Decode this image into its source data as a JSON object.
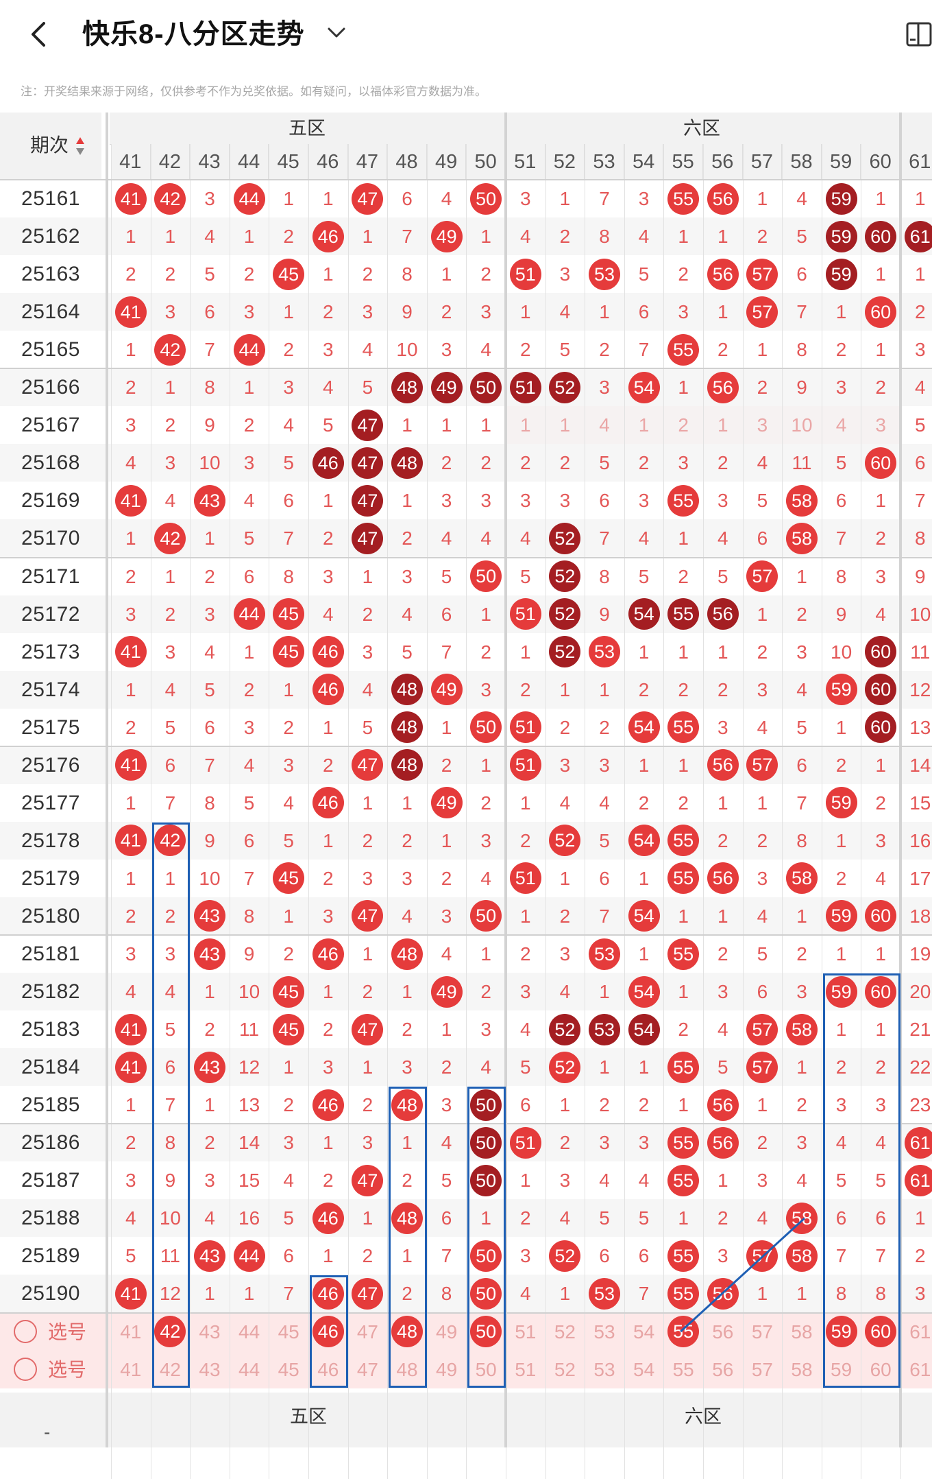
{
  "header": {
    "back_icon": "chevron-left-icon",
    "title": "快乐8-八分区走势",
    "title_dropdown_icon": "chevron-down-icon",
    "right_icon": "sidebar-panel-icon"
  },
  "note": "注：开奖结果来源于网络，仅供参考不作为兑奖依据。如有疑问，以福体彩官方数据为准。",
  "table": {
    "period_header": "期次",
    "sort_icon": "sort-icon",
    "zones": [
      {
        "label": "五区",
        "columns": [
          "41",
          "42",
          "43",
          "44",
          "45",
          "46",
          "47",
          "48",
          "49",
          "50"
        ]
      },
      {
        "label": "六区",
        "columns": [
          "51",
          "52",
          "53",
          "54",
          "55",
          "56",
          "57",
          "58",
          "59",
          "60"
        ]
      },
      {
        "label": "",
        "columns": [
          "61"
        ]
      }
    ],
    "columns": [
      "41",
      "42",
      "43",
      "44",
      "45",
      "46",
      "47",
      "48",
      "49",
      "50",
      "51",
      "52",
      "53",
      "54",
      "55",
      "56",
      "57",
      "58",
      "59",
      "60",
      "61"
    ],
    "rows": [
      {
        "period": "25161",
        "cells": [
          "41",
          "42",
          "3",
          "44",
          "1",
          "1",
          "47",
          "6",
          "4",
          "50",
          "3",
          "1",
          "7",
          "3",
          "55",
          "56",
          "1",
          "4",
          "59",
          "1",
          "1"
        ],
        "dark": [
          "59"
        ]
      },
      {
        "period": "25162",
        "cells": [
          "1",
          "1",
          "4",
          "1",
          "2",
          "46",
          "1",
          "7",
          "49",
          "1",
          "4",
          "2",
          "8",
          "4",
          "1",
          "1",
          "2",
          "5",
          "59",
          "60",
          "61"
        ],
        "dark": [
          "59",
          "60",
          "61"
        ]
      },
      {
        "period": "25163",
        "cells": [
          "2",
          "2",
          "5",
          "2",
          "45",
          "1",
          "2",
          "8",
          "1",
          "2",
          "51",
          "3",
          "53",
          "5",
          "2",
          "56",
          "57",
          "6",
          "59",
          "1",
          "1"
        ],
        "dark": [
          "59"
        ]
      },
      {
        "period": "25164",
        "cells": [
          "41",
          "3",
          "6",
          "3",
          "1",
          "2",
          "3",
          "9",
          "2",
          "3",
          "1",
          "4",
          "1",
          "6",
          "3",
          "1",
          "57",
          "7",
          "1",
          "60",
          "2"
        ],
        "dark": []
      },
      {
        "period": "25165",
        "cells": [
          "1",
          "42",
          "7",
          "44",
          "2",
          "3",
          "4",
          "10",
          "3",
          "4",
          "2",
          "5",
          "2",
          "7",
          "55",
          "2",
          "1",
          "8",
          "2",
          "1",
          "3"
        ],
        "dark": []
      },
      {
        "period": "25166",
        "cells": [
          "2",
          "1",
          "8",
          "1",
          "3",
          "4",
          "5",
          "48",
          "49",
          "50",
          "51",
          "52",
          "3",
          "54",
          "1",
          "56",
          "2",
          "9",
          "3",
          "2",
          "4"
        ],
        "dark": [
          "48",
          "49",
          "50",
          "51",
          "52"
        ]
      },
      {
        "period": "25167",
        "cells": [
          "3",
          "2",
          "9",
          "2",
          "4",
          "5",
          "47",
          "1",
          "1",
          "1",
          "1",
          "1",
          "4",
          "1",
          "2",
          "1",
          "3",
          "10",
          "4",
          "3",
          "5"
        ],
        "dark": [
          "47"
        ]
      },
      {
        "period": "25168",
        "cells": [
          "4",
          "3",
          "10",
          "3",
          "5",
          "46",
          "47",
          "48",
          "2",
          "2",
          "2",
          "2",
          "5",
          "2",
          "3",
          "2",
          "4",
          "11",
          "5",
          "60",
          "6"
        ],
        "dark": [
          "46",
          "47",
          "48"
        ]
      },
      {
        "period": "25169",
        "cells": [
          "41",
          "4",
          "43",
          "4",
          "6",
          "1",
          "47",
          "1",
          "3",
          "3",
          "3",
          "3",
          "6",
          "3",
          "55",
          "3",
          "5",
          "58",
          "6",
          "1",
          "7"
        ],
        "dark": [
          "47"
        ]
      },
      {
        "period": "25170",
        "cells": [
          "1",
          "42",
          "1",
          "5",
          "7",
          "2",
          "47",
          "2",
          "4",
          "4",
          "4",
          "52",
          "7",
          "4",
          "1",
          "4",
          "6",
          "58",
          "7",
          "2",
          "8"
        ],
        "dark": [
          "47",
          "52"
        ]
      },
      {
        "period": "25171",
        "cells": [
          "2",
          "1",
          "2",
          "6",
          "8",
          "3",
          "1",
          "3",
          "5",
          "50",
          "5",
          "52",
          "8",
          "5",
          "2",
          "5",
          "57",
          "1",
          "8",
          "3",
          "9"
        ],
        "dark": [
          "52"
        ]
      },
      {
        "period": "25172",
        "cells": [
          "3",
          "2",
          "3",
          "44",
          "45",
          "4",
          "2",
          "4",
          "6",
          "1",
          "51",
          "52",
          "9",
          "54",
          "55",
          "56",
          "1",
          "2",
          "9",
          "4",
          "10"
        ],
        "dark": [
          "52",
          "54",
          "55",
          "56"
        ]
      },
      {
        "period": "25173",
        "cells": [
          "41",
          "3",
          "4",
          "1",
          "45",
          "46",
          "3",
          "5",
          "7",
          "2",
          "1",
          "52",
          "53",
          "1",
          "1",
          "1",
          "2",
          "3",
          "10",
          "60",
          "11"
        ],
        "dark": [
          "52",
          "60"
        ]
      },
      {
        "period": "25174",
        "cells": [
          "1",
          "4",
          "5",
          "2",
          "1",
          "46",
          "4",
          "48",
          "49",
          "3",
          "2",
          "1",
          "1",
          "2",
          "2",
          "2",
          "3",
          "4",
          "59",
          "60",
          "12"
        ],
        "dark": [
          "48",
          "60"
        ]
      },
      {
        "period": "25175",
        "cells": [
          "2",
          "5",
          "6",
          "3",
          "2",
          "1",
          "5",
          "48",
          "1",
          "50",
          "51",
          "2",
          "2",
          "54",
          "55",
          "3",
          "4",
          "5",
          "1",
          "60",
          "13"
        ],
        "dark": [
          "48",
          "60"
        ]
      },
      {
        "period": "25176",
        "cells": [
          "41",
          "6",
          "7",
          "4",
          "3",
          "2",
          "47",
          "48",
          "2",
          "1",
          "51",
          "3",
          "3",
          "1",
          "1",
          "56",
          "57",
          "6",
          "2",
          "1",
          "14"
        ],
        "dark": [
          "48"
        ]
      },
      {
        "period": "25177",
        "cells": [
          "1",
          "7",
          "8",
          "5",
          "4",
          "46",
          "1",
          "1",
          "49",
          "2",
          "1",
          "4",
          "4",
          "2",
          "2",
          "1",
          "1",
          "7",
          "59",
          "2",
          "15"
        ],
        "dark": []
      },
      {
        "period": "25178",
        "cells": [
          "41",
          "42",
          "9",
          "6",
          "5",
          "1",
          "2",
          "2",
          "1",
          "3",
          "2",
          "52",
          "5",
          "54",
          "55",
          "2",
          "2",
          "8",
          "1",
          "3",
          "16"
        ],
        "dark": []
      },
      {
        "period": "25179",
        "cells": [
          "1",
          "1",
          "10",
          "7",
          "45",
          "2",
          "3",
          "3",
          "2",
          "4",
          "51",
          "1",
          "6",
          "1",
          "55",
          "56",
          "3",
          "58",
          "2",
          "4",
          "17"
        ],
        "dark": []
      },
      {
        "period": "25180",
        "cells": [
          "2",
          "2",
          "43",
          "8",
          "1",
          "3",
          "47",
          "4",
          "3",
          "50",
          "1",
          "2",
          "7",
          "54",
          "1",
          "1",
          "4",
          "1",
          "59",
          "60",
          "18"
        ],
        "dark": []
      },
      {
        "period": "25181",
        "cells": [
          "3",
          "3",
          "43",
          "9",
          "2",
          "46",
          "1",
          "48",
          "4",
          "1",
          "2",
          "3",
          "53",
          "1",
          "55",
          "2",
          "5",
          "2",
          "1",
          "1",
          "19"
        ],
        "dark": []
      },
      {
        "period": "25182",
        "cells": [
          "4",
          "4",
          "1",
          "10",
          "45",
          "1",
          "2",
          "1",
          "49",
          "2",
          "3",
          "4",
          "1",
          "54",
          "1",
          "3",
          "6",
          "3",
          "59",
          "60",
          "20"
        ],
        "dark": []
      },
      {
        "period": "25183",
        "cells": [
          "41",
          "5",
          "2",
          "11",
          "45",
          "2",
          "47",
          "2",
          "1",
          "3",
          "4",
          "52",
          "53",
          "54",
          "2",
          "4",
          "57",
          "58",
          "1",
          "1",
          "21"
        ],
        "dark": [
          "52",
          "53",
          "54"
        ]
      },
      {
        "period": "25184",
        "cells": [
          "41",
          "6",
          "43",
          "12",
          "1",
          "3",
          "1",
          "3",
          "2",
          "4",
          "5",
          "52",
          "1",
          "1",
          "55",
          "5",
          "57",
          "1",
          "2",
          "2",
          "22"
        ],
        "dark": []
      },
      {
        "period": "25185",
        "cells": [
          "1",
          "7",
          "1",
          "13",
          "2",
          "46",
          "2",
          "48",
          "3",
          "50",
          "6",
          "1",
          "2",
          "2",
          "1",
          "56",
          "1",
          "2",
          "3",
          "3",
          "23"
        ],
        "dark": [
          "50"
        ]
      },
      {
        "period": "25186",
        "cells": [
          "2",
          "8",
          "2",
          "14",
          "3",
          "1",
          "3",
          "1",
          "4",
          "50",
          "51",
          "2",
          "3",
          "3",
          "55",
          "56",
          "2",
          "3",
          "4",
          "4",
          "61"
        ],
        "dark": [
          "50"
        ]
      },
      {
        "period": "25187",
        "cells": [
          "3",
          "9",
          "3",
          "15",
          "4",
          "2",
          "47",
          "2",
          "5",
          "50",
          "1",
          "3",
          "4",
          "4",
          "55",
          "1",
          "3",
          "4",
          "5",
          "5",
          "61"
        ],
        "dark": [
          "50"
        ]
      },
      {
        "period": "25188",
        "cells": [
          "4",
          "10",
          "4",
          "16",
          "5",
          "46",
          "1",
          "48",
          "6",
          "1",
          "2",
          "4",
          "5",
          "5",
          "1",
          "2",
          "4",
          "58",
          "6",
          "6",
          "1"
        ],
        "dark": []
      },
      {
        "period": "25189",
        "cells": [
          "5",
          "11",
          "43",
          "44",
          "6",
          "1",
          "2",
          "1",
          "7",
          "50",
          "3",
          "52",
          "6",
          "6",
          "55",
          "3",
          "57",
          "58",
          "7",
          "7",
          "2"
        ],
        "dark": []
      },
      {
        "period": "25190",
        "cells": [
          "41",
          "12",
          "1",
          "1",
          "7",
          "46",
          "47",
          "2",
          "8",
          "50",
          "4",
          "1",
          "53",
          "7",
          "55",
          "56",
          "1",
          "1",
          "8",
          "8",
          "3"
        ],
        "dark": []
      }
    ],
    "selection_rows": [
      {
        "label": "选号",
        "picked": [
          "42",
          "46",
          "48",
          "50",
          "55",
          "59",
          "60"
        ]
      },
      {
        "label": "选号",
        "picked": []
      }
    ],
    "footer_period": "-"
  },
  "colors": {
    "ball": "#e53b3b",
    "ball_dark": "#a41e22",
    "miss_text": "#e45757",
    "box_blue": "#1e5fb4"
  }
}
